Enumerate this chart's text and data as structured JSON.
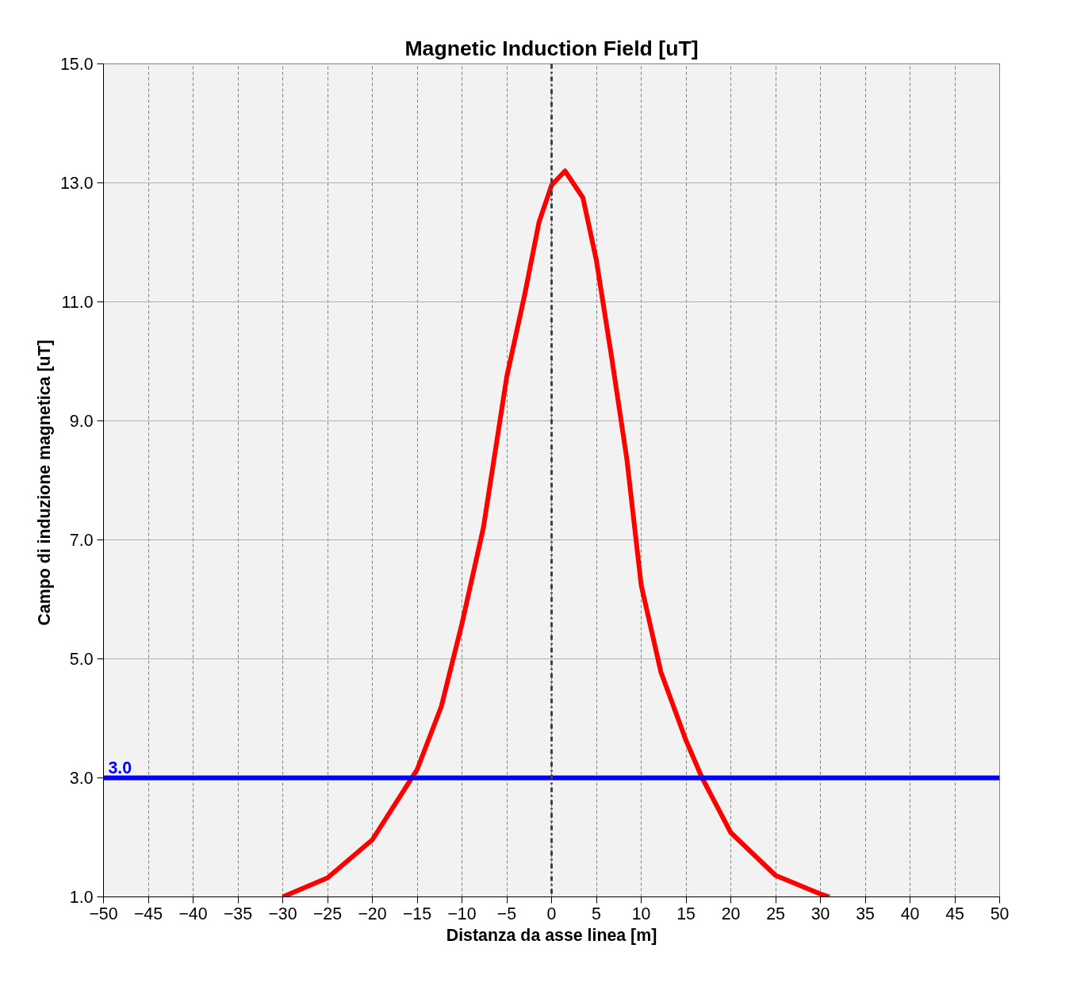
{
  "chart_data": {
    "type": "line",
    "title": "Magnetic Induction Field [uT]",
    "xlabel": "Distanza da asse linea [m]",
    "ylabel": "Campo di induzione magnetica  [uT]",
    "series": [
      {
        "color": "#ff0000",
        "x": [
          -30,
          -25,
          -20,
          -15,
          -12.3,
          -10,
          -7.6,
          -5,
          -3,
          -1.4,
          0,
          1.5,
          3.5,
          5,
          6.7,
          8.4,
          10,
          12.2,
          15,
          16.8,
          20,
          25,
          30,
          31
        ],
        "values": [
          1.0,
          1.32,
          1.96,
          3.14,
          4.2,
          5.59,
          7.21,
          9.74,
          11.12,
          12.34,
          12.96,
          13.2,
          12.75,
          11.7,
          10.07,
          8.36,
          6.24,
          4.78,
          3.63,
          3.0,
          2.08,
          1.36,
          1.05,
          1.0
        ]
      }
    ],
    "xlim": [
      -50,
      50
    ],
    "xticks": [
      -50,
      -45,
      -40,
      -35,
      -30,
      -25,
      -20,
      -15,
      -10,
      -5,
      0,
      5,
      10,
      15,
      20,
      25,
      30,
      35,
      40,
      45,
      50
    ],
    "ylim": [
      1,
      15
    ],
    "yticks": [
      {
        "value": 1,
        "label": "1.0"
      },
      {
        "value": 3,
        "label": "3.0"
      },
      {
        "value": 5,
        "label": "5.0"
      },
      {
        "value": 7,
        "label": "7.0"
      },
      {
        "value": 9,
        "label": "9.0"
      },
      {
        "value": 11,
        "label": "11.0"
      },
      {
        "value": 13,
        "label": "13.0"
      },
      {
        "value": 15,
        "label": "15.0"
      }
    ],
    "ref_lines": [
      {
        "axis": "y",
        "value": 3,
        "label": "3.0",
        "color": "#0000ff",
        "line_style": "solid"
      },
      {
        "axis": "x",
        "value": 0,
        "label": null,
        "color": "#404040",
        "line_style": "dashdot"
      }
    ],
    "grid": true,
    "marker": "none",
    "line_style": "solid"
  }
}
